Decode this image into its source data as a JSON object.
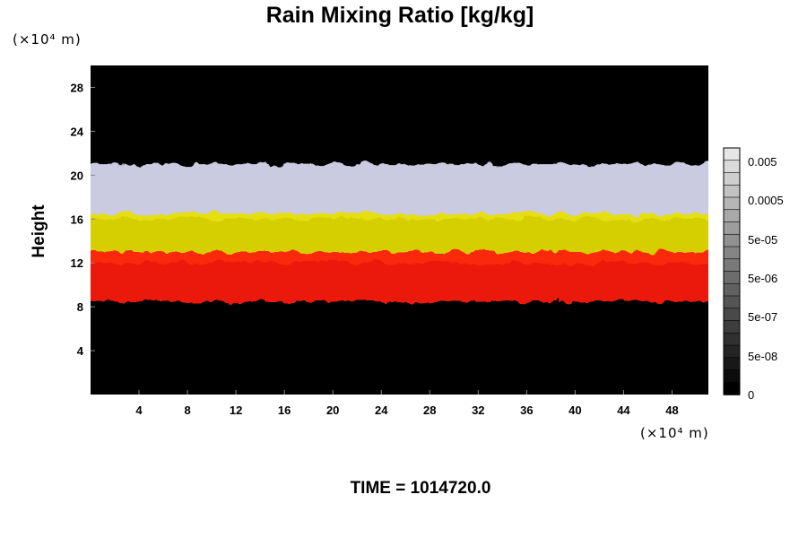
{
  "chart_data": {
    "type": "heatmap",
    "title": "Rain Mixing Ratio [kg/kg]",
    "ylabel": "Height",
    "x_unit": "(×10⁴ m)",
    "y_unit": "(×10⁴ m)",
    "x_ticks": [
      4,
      8,
      12,
      16,
      20,
      24,
      28,
      32,
      36,
      40,
      44,
      48
    ],
    "y_ticks": [
      4,
      8,
      12,
      16,
      20,
      24,
      28
    ],
    "xlim": [
      0,
      51
    ],
    "ylim": [
      0,
      30
    ],
    "colorbar": {
      "tick_labels": [
        "0.005",
        "0.0005",
        "5e-05",
        "5e-06",
        "5e-07",
        "5e-08",
        "0"
      ],
      "scale": "log"
    },
    "background_color": "#000000",
    "layers": [
      {
        "color": "#ff1a0d",
        "y_range": [
          8.5,
          13
        ]
      },
      {
        "color": "#e8e000",
        "y_range": [
          12,
          16.5
        ]
      },
      {
        "color": "#dcdcf4",
        "y_range": [
          16,
          21
        ]
      }
    ],
    "footer": "TIME = 1014720.0"
  }
}
